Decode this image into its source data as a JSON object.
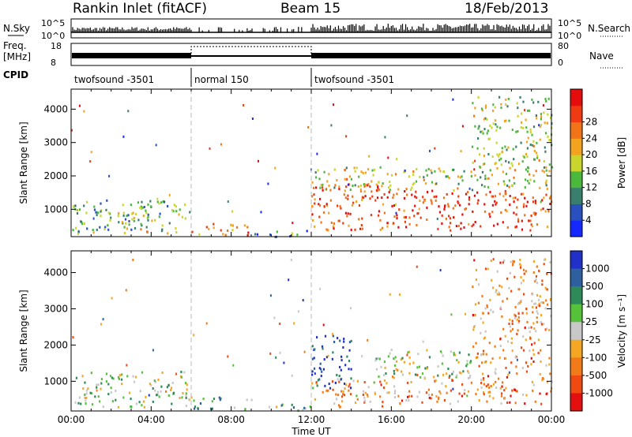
{
  "header": {
    "station": "Rankin Inlet (fitACF)",
    "beam": "Beam 15",
    "date": "18/Feb/2013"
  },
  "panels": {
    "nsky": {
      "left_label": "N.Sky",
      "right_label": "N.Search",
      "left_ticks": [
        "10^5",
        "10^0"
      ],
      "right_ticks": [
        "10^5",
        "10^0"
      ]
    },
    "freq": {
      "left_label_1": "Freq.",
      "left_label_2": "[MHz]",
      "right_label": "Nave",
      "left_ticks": [
        "18",
        "8"
      ],
      "right_ticks": [
        "80",
        "0"
      ]
    },
    "cpid": {
      "label": "CPID",
      "segments": [
        {
          "name": "twofsound -3501",
          "start": 0,
          "end": 6
        },
        {
          "name": "normal 150",
          "start": 6,
          "end": 12
        },
        {
          "name": "twofsound -3501",
          "start": 12,
          "end": 24
        }
      ]
    }
  },
  "chart_data": [
    {
      "type": "heatmap",
      "name": "power",
      "ylabel": "Slant Range [km]",
      "x_unit": "hours UT",
      "xlim": [
        0,
        24
      ],
      "ylim": [
        180,
        4600
      ],
      "yticks": [
        1000,
        2000,
        3000,
        4000
      ],
      "scale": {
        "label": "Power [dB]",
        "ticks": [
          "4",
          "8",
          "12",
          "16",
          "20",
          "24",
          "28"
        ],
        "colors": [
          "#1428ff",
          "#2a4fbf",
          "#3a7f6e",
          "#4bb83c",
          "#c9d52c",
          "#f4a321",
          "#f27318",
          "#ef3a12",
          "#e40c0c"
        ]
      },
      "regions": [
        {
          "t0": 0.0,
          "t1": 6.0,
          "r0": 300,
          "r1": 1300,
          "level": 0.35
        },
        {
          "t0": 2.5,
          "t1": 4.0,
          "r0": 350,
          "r1": 900,
          "level": 0.5
        },
        {
          "t0": 6.0,
          "t1": 9.0,
          "r0": 250,
          "r1": 600,
          "level": 0.7
        },
        {
          "t0": 9.0,
          "t1": 12.0,
          "r0": 200,
          "r1": 400,
          "level": 0.3
        },
        {
          "t0": 12.0,
          "t1": 16.0,
          "r0": 400,
          "r1": 1800,
          "level": 0.8
        },
        {
          "t0": 12.0,
          "t1": 24.0,
          "r0": 1600,
          "r1": 2300,
          "level": 0.5
        },
        {
          "t0": 16.0,
          "t1": 24.0,
          "r0": 400,
          "r1": 1600,
          "level": 0.85
        },
        {
          "t0": 20.0,
          "t1": 24.0,
          "r0": 2300,
          "r1": 4400,
          "level": 0.45
        }
      ]
    },
    {
      "type": "heatmap",
      "name": "velocity",
      "ylabel": "Slant Range [km]",
      "xlabel": "Time UT",
      "x_unit": "hours UT",
      "xlim": [
        0,
        24
      ],
      "ylim": [
        180,
        4600
      ],
      "xticks": [
        "00:00",
        "04:00",
        "08:00",
        "12:00",
        "16:00",
        "20:00",
        "00:00"
      ],
      "yticks": [
        1000,
        2000,
        3000,
        4000
      ],
      "scale": {
        "label": "Velocity [m s⁻¹]",
        "ticks": [
          "1000",
          "500",
          "100",
          "25",
          "-25",
          "-100",
          "-500",
          "-1000"
        ],
        "colors": [
          "#2030c8",
          "#2e60a0",
          "#2f8a5a",
          "#55c23a",
          "#c8c8c8",
          "#f5a623",
          "#f27a18",
          "#ee4a12",
          "#e41010"
        ]
      },
      "regions": [
        {
          "t0": 0.0,
          "t1": 6.0,
          "r0": 300,
          "r1": 1300,
          "level": 0.45
        },
        {
          "t0": 6.0,
          "t1": 9.0,
          "r0": 250,
          "r1": 600,
          "level": 0.35
        },
        {
          "t0": 9.0,
          "t1": 12.0,
          "r0": 200,
          "r1": 400,
          "level": 0.4
        },
        {
          "t0": 12.0,
          "t1": 14.0,
          "r0": 800,
          "r1": 2300,
          "level": 0.08
        },
        {
          "t0": 12.0,
          "t1": 16.0,
          "r0": 300,
          "r1": 1100,
          "level": 0.65
        },
        {
          "t0": 15.0,
          "t1": 20.0,
          "r0": 1100,
          "r1": 1900,
          "level": 0.45
        },
        {
          "t0": 16.0,
          "t1": 24.0,
          "r0": 400,
          "r1": 1300,
          "level": 0.7
        },
        {
          "t0": 20.0,
          "t1": 24.0,
          "r0": 1400,
          "r1": 4400,
          "level": 0.68
        }
      ]
    }
  ]
}
